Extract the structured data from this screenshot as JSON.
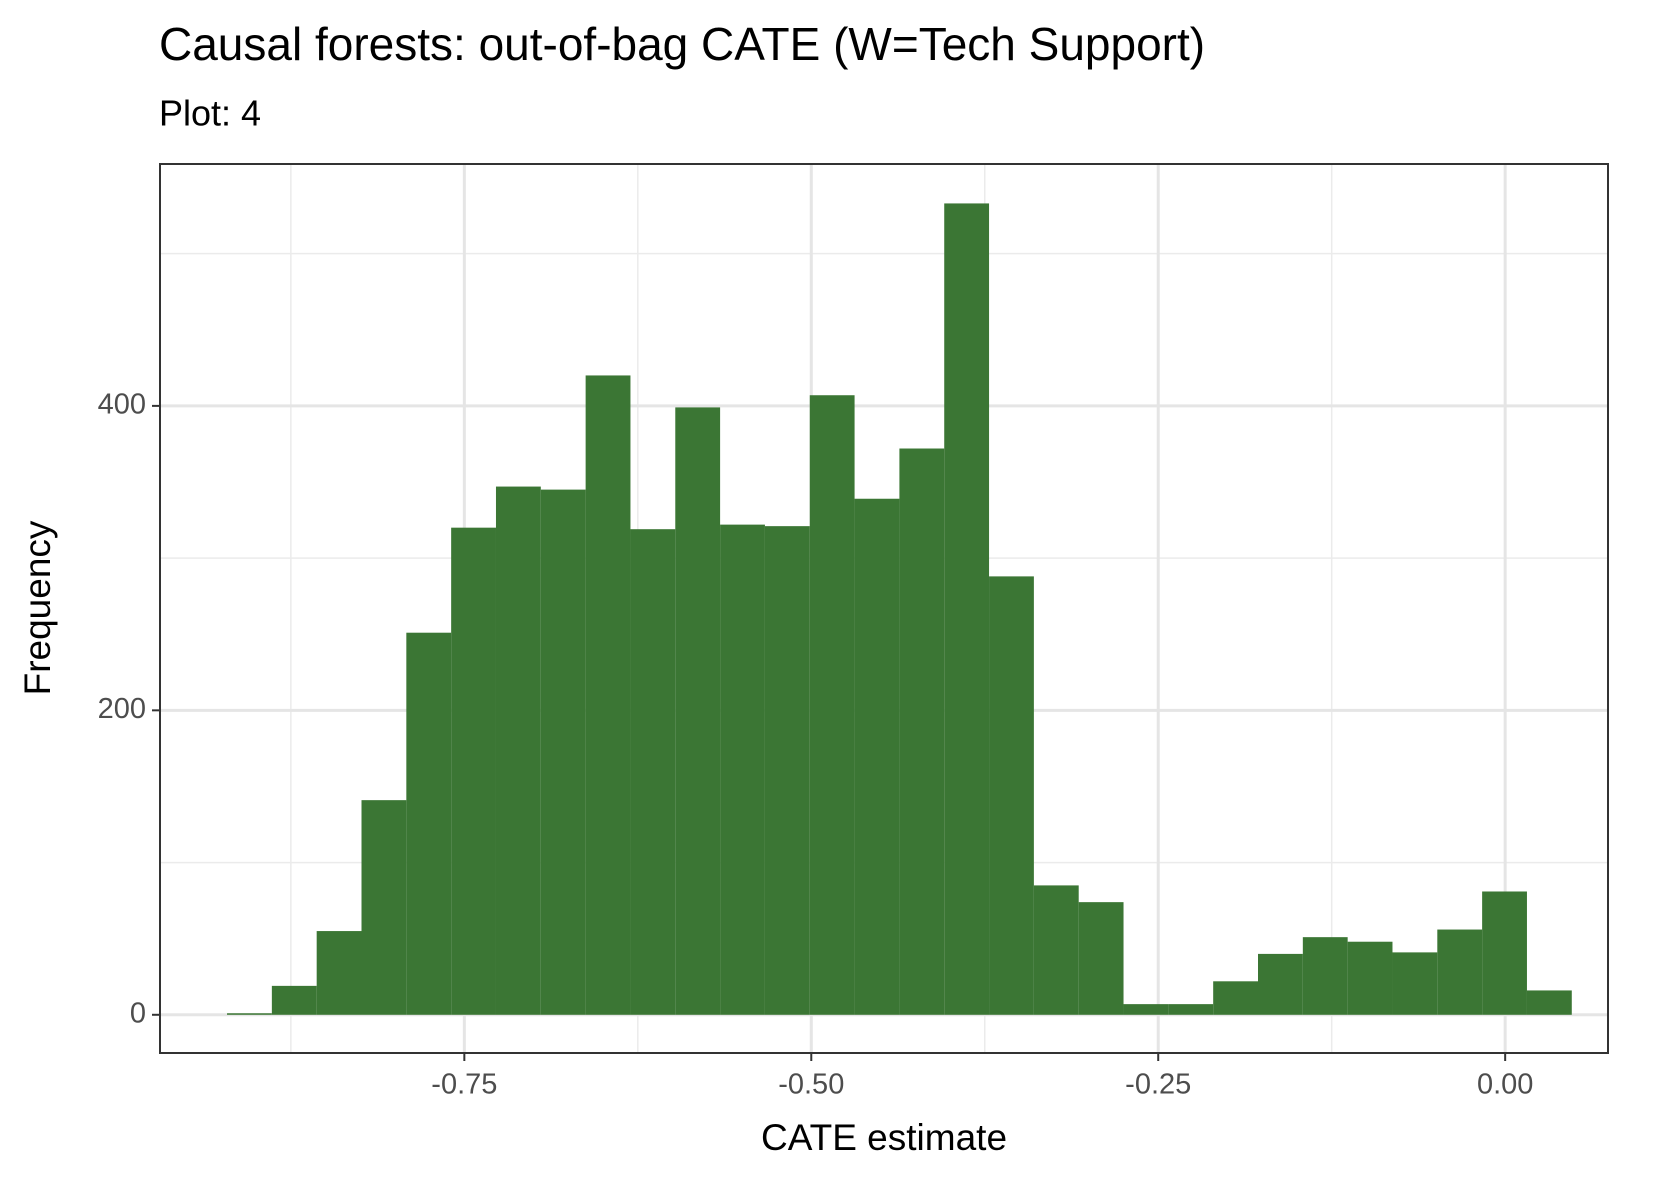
{
  "chart_data": {
    "type": "histogram",
    "title": "Causal forests: out-of-bag CATE (W=Tech Support)",
    "subtitle": "Plot: 4",
    "x_label": "CATE estimate",
    "y_label": "Frequency",
    "bins": [
      -0.921,
      -0.8887,
      -0.8564,
      -0.8241,
      -0.7918,
      -0.7595,
      -0.7272,
      -0.6949,
      -0.6626,
      -0.6303,
      -0.598,
      -0.5657,
      -0.5334,
      -0.5011,
      -0.4688,
      -0.4365,
      -0.4042,
      -0.3719,
      -0.3396,
      -0.3073,
      -0.275,
      -0.2427,
      -0.2104,
      -0.1781,
      -0.1458,
      -0.1135,
      -0.0812,
      -0.0489,
      -0.0166,
      0.0157,
      0.048
    ],
    "counts": [
      1,
      19,
      55,
      141,
      251,
      320,
      347,
      345,
      420,
      319,
      399,
      322,
      321,
      407,
      339,
      372,
      533,
      288,
      85,
      74,
      7,
      7,
      22,
      40,
      51,
      48,
      41,
      56,
      81,
      16
    ],
    "color": "#3b7634",
    "xlim": [
      -0.9693,
      0.0741
    ],
    "ylim": [
      -25.1,
      558.9
    ],
    "xticks": [
      {
        "value": -0.75,
        "label": "-0.75"
      },
      {
        "value": -0.5,
        "label": "-0.50"
      },
      {
        "value": -0.25,
        "label": "-0.25"
      },
      {
        "value": 0,
        "label": "0.00"
      }
    ],
    "yticks": [
      0,
      200,
      400
    ],
    "grid": true,
    "minor_grid": true
  }
}
